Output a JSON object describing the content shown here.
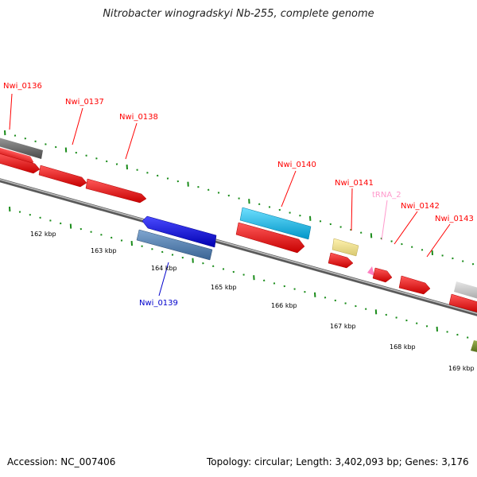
{
  "title": "Nitrobacter winogradskyi Nb-255, complete genome",
  "footer": {
    "accession": "Accession: NC_007406",
    "topology": "Topology: circular; Length: 3,402,093 bp; Genes: 3,176"
  },
  "colors": {
    "forward_cds": "#ff0000",
    "reverse_cds": "#0000ff",
    "trna": "#ff80c0",
    "tick": "#1a8c1a",
    "backbone": "#888888"
  },
  "gene_labels": [
    {
      "id": "nwi-0136",
      "text": "Nwi_0136",
      "color": "#ff0000"
    },
    {
      "id": "nwi-0137",
      "text": "Nwi_0137",
      "color": "#ff0000"
    },
    {
      "id": "nwi-0138",
      "text": "Nwi_0138",
      "color": "#ff0000"
    },
    {
      "id": "nwi-0139",
      "text": "Nwi_0139",
      "color": "#0000cc"
    },
    {
      "id": "nwi-0140",
      "text": "Nwi_0140",
      "color": "#ff0000"
    },
    {
      "id": "nwi-0141",
      "text": "Nwi_0141",
      "color": "#ff0000"
    },
    {
      "id": "trna-2",
      "text": "tRNA_2",
      "color": "#ff99cc"
    },
    {
      "id": "nwi-0142",
      "text": "Nwi_0142",
      "color": "#ff0000"
    },
    {
      "id": "nwi-0143",
      "text": "Nwi_0143",
      "color": "#ff0000"
    }
  ],
  "kbp_labels": [
    "162 kbp",
    "163 kbp",
    "164 kbp",
    "165 kbp",
    "166 kbp",
    "167 kbp",
    "168 kbp",
    "169 kbp"
  ]
}
